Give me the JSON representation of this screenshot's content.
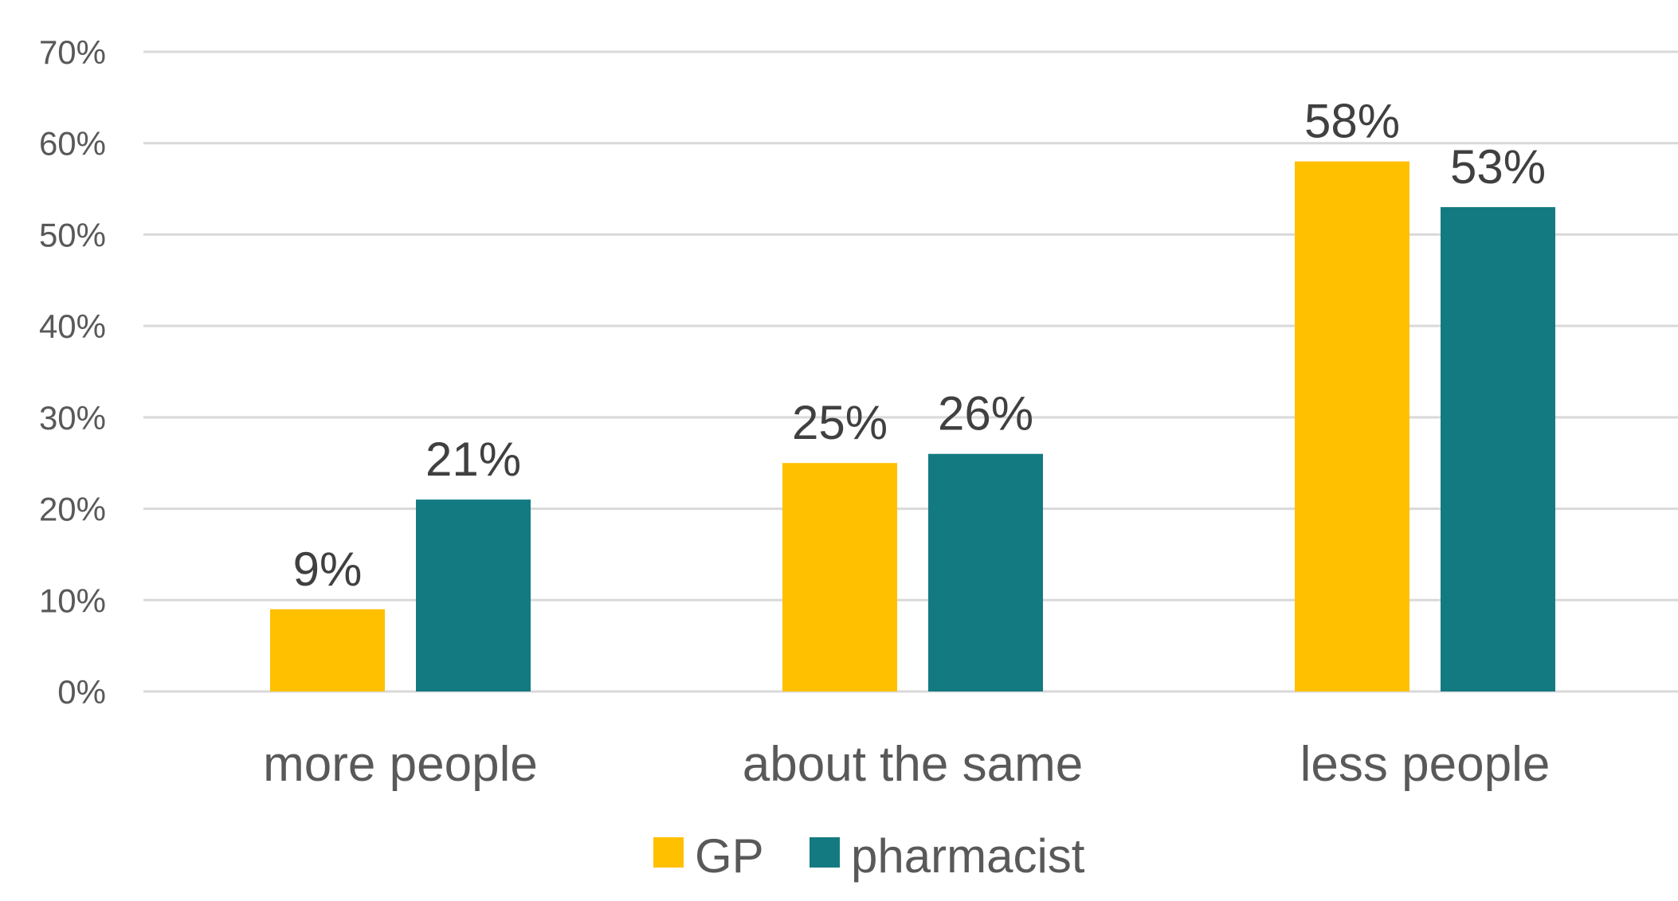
{
  "chart_data": {
    "type": "bar",
    "categories": [
      "more people",
      "about the same",
      "less people"
    ],
    "series": [
      {
        "name": "GP",
        "values": [
          9,
          25,
          58
        ],
        "labels": [
          "9%",
          "25%",
          "58%"
        ],
        "color": "#FFC000"
      },
      {
        "name": "pharmacist",
        "values": [
          21,
          26,
          53
        ],
        "labels": [
          "21%",
          "26%",
          "53%"
        ],
        "color": "#137A82"
      }
    ],
    "ylim": [
      0,
      70
    ],
    "yticks": [
      0,
      10,
      20,
      30,
      40,
      50,
      60,
      70
    ],
    "ytick_labels": [
      "0%",
      "10%",
      "20%",
      "30%",
      "40%",
      "50%",
      "60%",
      "70%"
    ],
    "grid": true,
    "legend_position": "bottom",
    "title": "",
    "xlabel": "",
    "ylabel": ""
  },
  "colors": {
    "grid": "#d9d9d9",
    "tick_text": "#595959",
    "label_text": "#404040"
  }
}
